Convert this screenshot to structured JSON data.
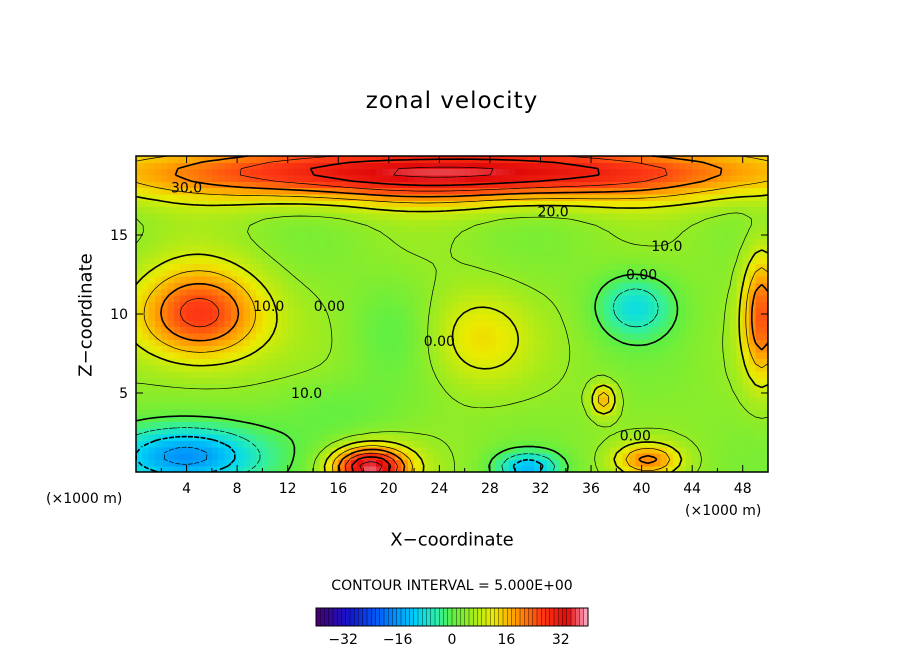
{
  "chart_data": {
    "type": "heatmap",
    "title": "zonal velocity",
    "xlabel": "X−coordinate",
    "ylabel": "Z−coordinate",
    "x_unit_left": "(×1000 m)",
    "x_unit_right": "(×1000 m)",
    "xlim": [
      0,
      50
    ],
    "ylim": [
      0,
      20
    ],
    "x_ticks": [
      4,
      8,
      12,
      16,
      20,
      24,
      28,
      32,
      36,
      40,
      44,
      48
    ],
    "x_tick_labels": [
      "4",
      "8",
      "12",
      "16",
      "20",
      "24",
      "28",
      "32",
      "36",
      "40",
      "44",
      "48"
    ],
    "y_ticks": [
      5,
      10,
      15
    ],
    "y_tick_labels": [
      "5",
      "10",
      "15"
    ],
    "contour_interval_text": "CONTOUR INTERVAL = 5.000E+00",
    "contour_labels": [
      {
        "text": "30.0",
        "x": 4,
        "z": 18
      },
      {
        "text": "20.0",
        "x": 33,
        "z": 16.5
      },
      {
        "text": "10.0",
        "x": 42,
        "z": 14.3
      },
      {
        "text": "0.00",
        "x": 40,
        "z": 12.5
      },
      {
        "text": "10.0",
        "x": 10.5,
        "z": 10.5
      },
      {
        "text": "0.00",
        "x": 15.3,
        "z": 10.5
      },
      {
        "text": "0.00",
        "x": 24,
        "z": 8.3
      },
      {
        "text": "10.0",
        "x": 13.5,
        "z": 5
      },
      {
        "text": "0.00",
        "x": 39.5,
        "z": 2.3
      }
    ],
    "features": [
      {
        "kind": "jet",
        "value": 32,
        "x": 25,
        "z": 19,
        "width": 26,
        "height": 1.8
      },
      {
        "kind": "max",
        "value": 24,
        "x": 5,
        "z": 10,
        "width": 5,
        "height": 3
      },
      {
        "kind": "max",
        "value": 34,
        "x": 18.5,
        "z": 0.3,
        "width": 3,
        "height": 1.3
      },
      {
        "kind": "min",
        "value": -12,
        "x": 39.5,
        "z": 10.5,
        "width": 3,
        "height": 2
      },
      {
        "kind": "min",
        "value": -22,
        "x": 4,
        "z": 1,
        "width": 6,
        "height": 2
      },
      {
        "kind": "min",
        "value": -16,
        "x": 31,
        "z": 0.3,
        "width": 2.5,
        "height": 1
      },
      {
        "kind": "max",
        "value": 20,
        "x": 49.5,
        "z": 10,
        "width": 1.5,
        "height": 4
      },
      {
        "kind": "max",
        "value": 14,
        "x": 37,
        "z": 4.6,
        "width": 1,
        "height": 1
      },
      {
        "kind": "max",
        "value": 16,
        "x": 40.5,
        "z": 0.8,
        "width": 2.5,
        "height": 1
      },
      {
        "kind": "min",
        "value": -3,
        "x": 16,
        "z": 4,
        "width": 5,
        "height": 2
      },
      {
        "kind": "max",
        "value": 9,
        "x": 27,
        "z": 8.5,
        "width": 4,
        "height": 3
      },
      {
        "kind": "min",
        "value": -3,
        "x": 20,
        "z": 9,
        "width": 3,
        "height": 3
      }
    ],
    "colorbar": {
      "range": [
        -40,
        40
      ],
      "ticks": [
        -32,
        -16,
        0,
        16,
        32
      ],
      "tick_labels": [
        "−32",
        "−16",
        "0",
        "16",
        "32"
      ]
    }
  }
}
